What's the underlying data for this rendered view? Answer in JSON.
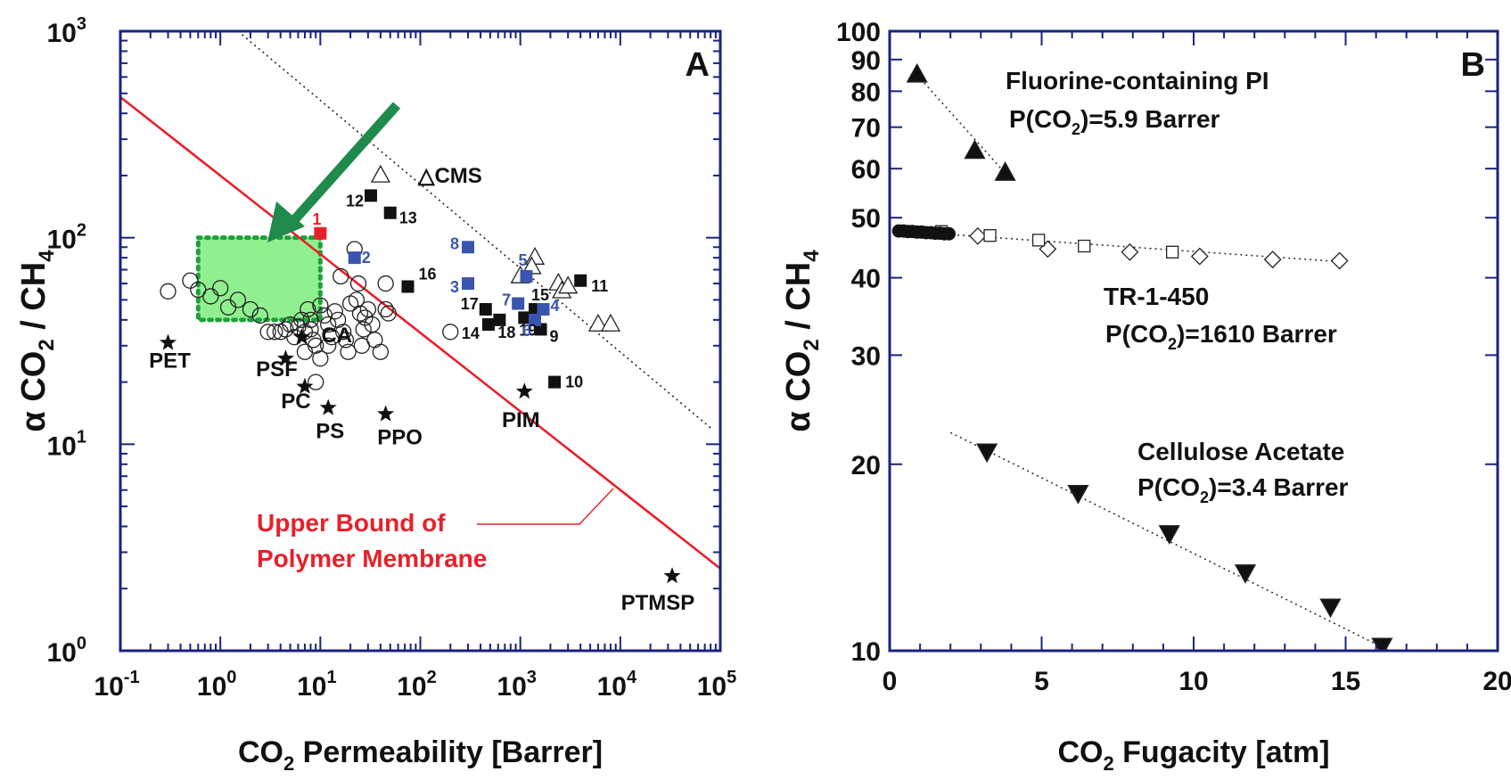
{
  "chart_data": [
    {
      "type": "scatter",
      "panel_label": "A",
      "xlabel": "CO2 Permeability [Barrer]",
      "ylabel": "α CO2 / CH4",
      "xscale": "log",
      "yscale": "log",
      "xlim": [
        0.1,
        100000
      ],
      "ylim": [
        1,
        1000
      ],
      "x_ticks": [
        {
          "v": 0.1,
          "base": "10",
          "exp": "-1"
        },
        {
          "v": 1,
          "base": "10",
          "exp": "0"
        },
        {
          "v": 10,
          "base": "10",
          "exp": "1"
        },
        {
          "v": 100,
          "base": "10",
          "exp": "2"
        },
        {
          "v": 1000,
          "base": "10",
          "exp": "3"
        },
        {
          "v": 10000,
          "base": "10",
          "exp": "4"
        },
        {
          "v": 100000,
          "base": "10",
          "exp": "5"
        }
      ],
      "y_ticks": [
        {
          "v": 1,
          "base": "10",
          "exp": "0"
        },
        {
          "v": 10,
          "base": "10",
          "exp": "1"
        },
        {
          "v": 100,
          "base": "10",
          "exp": "2"
        },
        {
          "v": 1000,
          "base": "10",
          "exp": "3"
        }
      ],
      "upper_bound": {
        "label_line1": "Upper Bound of",
        "label_line2": "Polymer Membrane",
        "x": [
          0.1,
          100000
        ],
        "y": [
          480,
          2.5
        ],
        "color": "#e8202a"
      },
      "dotted_line": {
        "x": [
          1.5,
          80000
        ],
        "y": [
          1000,
          12
        ]
      },
      "target_region": {
        "x": [
          0.6,
          10
        ],
        "y": [
          40,
          100
        ],
        "color": "#90f090"
      },
      "polymers_open_circles": [
        [
          0.3,
          55
        ],
        [
          0.5,
          62
        ],
        [
          0.6,
          56
        ],
        [
          0.8,
          52
        ],
        [
          1.0,
          57
        ],
        [
          1.2,
          46
        ],
        [
          1.5,
          50
        ],
        [
          2.0,
          45
        ],
        [
          2.5,
          42
        ],
        [
          3,
          35
        ],
        [
          3.5,
          35
        ],
        [
          4,
          35
        ],
        [
          4.5,
          36
        ],
        [
          5,
          38
        ],
        [
          5.5,
          33
        ],
        [
          6,
          37
        ],
        [
          6.5,
          40
        ],
        [
          7,
          35
        ],
        [
          7.5,
          45
        ],
        [
          8,
          36
        ],
        [
          8.5,
          32
        ],
        [
          9,
          30
        ],
        [
          10,
          47
        ],
        [
          11,
          42
        ],
        [
          12,
          38
        ],
        [
          13,
          33
        ],
        [
          14,
          44
        ],
        [
          15,
          40
        ],
        [
          16,
          65
        ],
        [
          17,
          35
        ],
        [
          18,
          32
        ],
        [
          19,
          28
        ],
        [
          20,
          48
        ],
        [
          22,
          88
        ],
        [
          23,
          50
        ],
        [
          24,
          60
        ],
        [
          25,
          43
        ],
        [
          26,
          30
        ],
        [
          27,
          36
        ],
        [
          28,
          41
        ],
        [
          30,
          45
        ],
        [
          33,
          38
        ],
        [
          35,
          32
        ],
        [
          40,
          28
        ],
        [
          45,
          45
        ],
        [
          48,
          43
        ],
        [
          45,
          60
        ],
        [
          8,
          40
        ],
        [
          9,
          20
        ],
        [
          10,
          26
        ],
        [
          12,
          30
        ],
        [
          7,
          28
        ],
        [
          200,
          35
        ]
      ],
      "cms_open_triangles": [
        [
          40,
          200
        ],
        [
          1400,
          80
        ],
        [
          1300,
          72
        ],
        [
          1000,
          65
        ],
        [
          2400,
          60
        ],
        [
          2600,
          55
        ],
        [
          3000,
          58
        ],
        [
          6000,
          38
        ],
        [
          8000,
          38
        ]
      ],
      "cms_label": "△CMS",
      "black_squares": [
        {
          "id": "12",
          "x": 32,
          "y": 160
        },
        {
          "id": "13",
          "x": 50,
          "y": 132
        },
        {
          "id": "16",
          "x": 75,
          "y": 58
        },
        {
          "id": "11",
          "x": 4000,
          "y": 62
        },
        {
          "id": "17",
          "x": 450,
          "y": 45
        },
        {
          "id": "14",
          "x": 480,
          "y": 38
        },
        {
          "id": "18",
          "x": 620,
          "y": 40
        },
        {
          "id": "19",
          "x": 1100,
          "y": 41
        },
        {
          "id": "15",
          "x": 1400,
          "y": 45
        },
        {
          "id": "9",
          "x": 1600,
          "y": 36
        },
        {
          "id": "10",
          "x": 2200,
          "y": 20
        }
      ],
      "blue_squares": [
        {
          "id": "2",
          "x": 22,
          "y": 80
        },
        {
          "id": "8",
          "x": 300,
          "y": 90
        },
        {
          "id": "3",
          "x": 300,
          "y": 60
        },
        {
          "id": "5",
          "x": 1150,
          "y": 65
        },
        {
          "id": "7",
          "x": 950,
          "y": 48
        },
        {
          "id": "4",
          "x": 1700,
          "y": 45
        },
        {
          "id": "6",
          "x": 1400,
          "y": 40
        }
      ],
      "red_squares": [
        {
          "id": "1",
          "x": 10,
          "y": 105
        }
      ],
      "stars": [
        {
          "label": "PET",
          "x": 0.3,
          "y": 31
        },
        {
          "label": "PSF",
          "x": 4.5,
          "y": 26
        },
        {
          "label": "CA",
          "x": 6.5,
          "y": 33
        },
        {
          "label": "PC",
          "x": 7,
          "y": 19
        },
        {
          "label": "PS",
          "x": 12,
          "y": 15
        },
        {
          "label": "PPO",
          "x": 45,
          "y": 14
        },
        {
          "label": "PIM",
          "x": 1100,
          "y": 18
        },
        {
          "label": "PTMSP",
          "x": 33000,
          "y": 2.3
        }
      ]
    },
    {
      "type": "scatter",
      "panel_label": "B",
      "xlabel": "CO2 Fugacity [atm]",
      "ylabel": "α CO2 / CH4",
      "xscale": "linear",
      "yscale": "log",
      "xlim": [
        0,
        20
      ],
      "ylim": [
        10,
        100
      ],
      "x_ticks": [
        {
          "v": 0,
          "t": "0"
        },
        {
          "v": 5,
          "t": "5"
        },
        {
          "v": 10,
          "t": "10"
        },
        {
          "v": 15,
          "t": "15"
        },
        {
          "v": 20,
          "t": "20"
        }
      ],
      "y_ticks": [
        {
          "v": 10,
          "t": "10"
        },
        {
          "v": 20,
          "t": "20"
        },
        {
          "v": 30,
          "t": "30"
        },
        {
          "v": 40,
          "t": "40"
        },
        {
          "v": 50,
          "t": "50"
        },
        {
          "v": 60,
          "t": "60"
        },
        {
          "v": 70,
          "t": "70"
        },
        {
          "v": 80,
          "t": "80"
        },
        {
          "v": 90,
          "t": "90"
        },
        {
          "v": 100,
          "t": "100"
        }
      ],
      "series": [
        {
          "name": "Fluorine-containing PI",
          "annotation": "P(CO2)=5.9 Barrer",
          "marker": "triangle-up-filled",
          "x": [
            0.9,
            2.8,
            3.8
          ],
          "y": [
            85,
            64,
            59
          ],
          "fit": {
            "x": [
              0.9,
              3.8
            ],
            "y": [
              85,
              59
            ]
          }
        },
        {
          "name": "TR-1-450",
          "annotation": "P(CO2)=1610 Barrer",
          "marker": "mixed",
          "filled_circles": {
            "x": [
              0.3,
              0.45,
              0.6,
              0.75,
              0.9,
              1.05,
              1.2,
              1.35,
              1.5,
              1.65,
              1.8,
              1.95
            ],
            "y": [
              47.6,
              47.6,
              47.5,
              47.5,
              47.4,
              47.4,
              47.3,
              47.3,
              47.2,
              47.2,
              47.1,
              47.1
            ]
          },
          "open_squares": {
            "x": [
              1.7,
              3.3,
              4.9,
              6.4,
              9.3
            ],
            "y": [
              47.5,
              46.8,
              46,
              45,
              44
            ]
          },
          "open_diamonds": {
            "x": [
              2.9,
              5.2,
              7.9,
              10.2,
              12.6,
              14.8
            ],
            "y": [
              46.7,
              44.5,
              44,
              43.3,
              42.8,
              42.6
            ]
          },
          "fit": {
            "x": [
              0.3,
              15
            ],
            "y": [
              47.6,
              42.4
            ]
          }
        },
        {
          "name": "Cellulose Acetate",
          "annotation": "P(CO2)=3.4 Barrer",
          "marker": "triangle-down-filled",
          "x": [
            3.2,
            6.2,
            9.2,
            11.7,
            14.5,
            16.2
          ],
          "y": [
            21,
            18,
            15.5,
            13.4,
            11.8,
            10.2
          ],
          "fit": {
            "x": [
              2.0,
              16.8
            ],
            "y": [
              22.5,
              9.8
            ]
          }
        }
      ]
    }
  ]
}
